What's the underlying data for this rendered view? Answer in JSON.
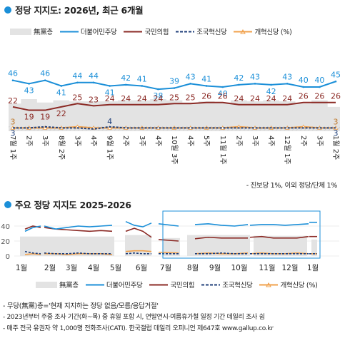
{
  "chart1_title": "정당 지지도: 2026년, 최근 6개월",
  "chart2_title": "주요 정당 지지도 2025-2026",
  "legend": {
    "none": "無黨층",
    "dem": "더불어민주당",
    "ppp": "국민의힘",
    "rebuild": "조국혁신당",
    "reform": "개혁신당 (%)"
  },
  "colors": {
    "dem": "#1b8fd8",
    "ppp": "#8b2a25",
    "rebuild": "#1f3f7a",
    "reform": "#f0a04b",
    "none": "#e3e3e3",
    "frame": "#1b8fd8"
  },
  "note": "- 진보당 1%, 이외 정당/단체 1%",
  "footnotes": [
    "- 무당(無黨)층='현재 지지하는 정당 없음/모름/응답거절'",
    "- 2023년부터 주중 조사 기간(화~목) 중 휴일 포함 시, 연말연시·여름휴가철 일정 기간 데일리 조사 쉼",
    "- 매주 전국 유권자 약 1,000명 전화조사(CATI). 한국갤럽 데일리 오피니언 제647호 www.gallup.co.kr"
  ],
  "chart_data": [
    {
      "type": "line",
      "title": "정당 지지도: 2026년, 최근 6개월",
      "x": [
        "7월 1주",
        "2주",
        "3주",
        "8월 2주",
        "3주",
        "4주",
        "9월 1주",
        "2주",
        "3주",
        "4주",
        "10월 3주",
        "4주",
        "5주",
        "11월 1주",
        "2주",
        "3주",
        "4주",
        "12월 1주",
        "2주",
        "3주",
        "1월 2주"
      ],
      "series": [
        {
          "name": "더불어민주당",
          "values": [
            46,
            43,
            46,
            41,
            44,
            44,
            41,
            42,
            41,
            38,
            39,
            43,
            41,
            40,
            42,
            43,
            42,
            43,
            40,
            40,
            45
          ]
        },
        {
          "name": "국민의힘",
          "values": [
            22,
            19,
            19,
            22,
            25,
            23,
            24,
            24,
            24,
            24,
            25,
            25,
            26,
            26,
            24,
            24,
            24,
            24,
            26,
            26,
            26
          ]
        },
        {
          "name": "조국혁신당",
          "values": [
            3,
            3,
            4,
            3,
            3,
            2,
            4,
            3,
            3,
            3,
            3,
            3,
            3,
            3,
            3,
            3,
            3,
            3,
            3,
            3,
            3
          ]
        },
        {
          "name": "개혁신당",
          "values": [
            3,
            3,
            3,
            3,
            4,
            3,
            3,
            3,
            3,
            3,
            3,
            3,
            3,
            3,
            4,
            3,
            3,
            3,
            4,
            3,
            3
          ]
        },
        {
          "name": "無黨층",
          "values": [
            25,
            29,
            26,
            28,
            27,
            27,
            27,
            28,
            28,
            29,
            28,
            26,
            27,
            26,
            28,
            27,
            28,
            27,
            25,
            28,
            22
          ]
        }
      ],
      "labels_shown": {
        "더불어민주당": [
          46,
          43,
          46,
          41,
          44,
          44,
          41,
          42,
          41,
          38,
          39,
          43,
          41,
          40,
          42,
          43,
          42,
          43,
          40,
          40,
          45
        ],
        "국민의힘": [
          22,
          19,
          19,
          22,
          25,
          23,
          24,
          24,
          24,
          24,
          25,
          25,
          26,
          26,
          24,
          24,
          24,
          24,
          26,
          26,
          26
        ],
        "조국혁신당_first": 3,
        "조국혁신당_mid": 4,
        "조국혁신당_last": 3,
        "개혁신당_first": 3,
        "개혁신당_last": 3
      }
    },
    {
      "type": "line",
      "title": "주요 정당 지지도 2025-2026",
      "x_ticks": [
        "1월",
        "2월",
        "3월",
        "4월",
        "5월",
        "6월",
        "7월",
        "8월",
        "9월",
        "10월",
        "11월",
        "12월",
        "1월"
      ],
      "y_ticks": [
        0,
        20,
        40
      ],
      "ylim": [
        0,
        50
      ],
      "note": "최근 6개월 구간(7월~1월)은 파란 테두리로 강조"
    }
  ]
}
